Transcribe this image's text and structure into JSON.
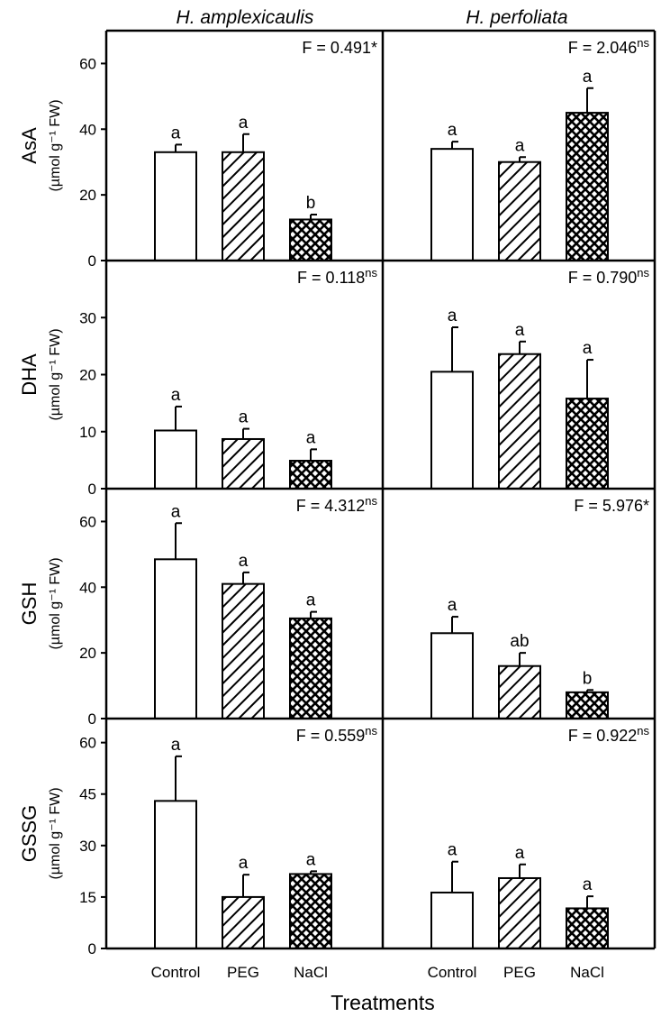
{
  "figure": {
    "columns": [
      "H. amplexicaulis",
      "H. perfoliata"
    ],
    "x_axis_title": "Treatments"
  },
  "chart_data": [
    {
      "type": "bar",
      "species": "H. amplexicaulis",
      "ylabel": "AsA",
      "unit": "(µmol g⁻¹ FW)",
      "categories": [
        "Control",
        "PEG",
        "NaCl"
      ],
      "values": [
        33,
        33,
        12.5
      ],
      "errors": [
        2.3,
        5.5,
        1.5
      ],
      "letters": [
        "a",
        "a",
        "b"
      ],
      "ylim": [
        0,
        70
      ],
      "yticks": [
        0,
        20,
        40,
        60
      ],
      "f_main": "F = 0.491",
      "f_sup": "",
      "f_tail": "*"
    },
    {
      "type": "bar",
      "species": "H. perfoliata",
      "ylabel": "AsA",
      "unit": "(µmol g⁻¹ FW)",
      "categories": [
        "Control",
        "PEG",
        "NaCl"
      ],
      "values": [
        34,
        30,
        45
      ],
      "errors": [
        2.2,
        1.5,
        7.5
      ],
      "letters": [
        "a",
        "a",
        "a"
      ],
      "ylim": [
        0,
        70
      ],
      "yticks": [
        0,
        20,
        40,
        60
      ],
      "f_main": "F = 2.046",
      "f_sup": "ns",
      "f_tail": ""
    },
    {
      "type": "bar",
      "species": "H. amplexicaulis",
      "ylabel": "DHA",
      "unit": "(µmol g⁻¹ FW)",
      "categories": [
        "Control",
        "PEG",
        "NaCl"
      ],
      "values": [
        10.2,
        8.7,
        4.9
      ],
      "errors": [
        4.2,
        1.8,
        2.0
      ],
      "letters": [
        "a",
        "a",
        "a"
      ],
      "ylim": [
        0,
        40
      ],
      "yticks": [
        0,
        10,
        20,
        30
      ],
      "f_main": "F = 0.118",
      "f_sup": "ns",
      "f_tail": ""
    },
    {
      "type": "bar",
      "species": "H. perfoliata",
      "ylabel": "DHA",
      "unit": "(µmol g⁻¹ FW)",
      "categories": [
        "Control",
        "PEG",
        "NaCl"
      ],
      "values": [
        20.5,
        23.6,
        15.8
      ],
      "errors": [
        7.8,
        2.2,
        6.8
      ],
      "letters": [
        "a",
        "a",
        "a"
      ],
      "ylim": [
        0,
        40
      ],
      "yticks": [
        0,
        10,
        20,
        30
      ],
      "f_main": "F = 0.790",
      "f_sup": "ns",
      "f_tail": ""
    },
    {
      "type": "bar",
      "species": "H. amplexicaulis",
      "ylabel": "GSH",
      "unit": "(µmol g⁻¹ FW)",
      "categories": [
        "Control",
        "PEG",
        "NaCl"
      ],
      "values": [
        48.5,
        41,
        30.5
      ],
      "errors": [
        11,
        3.5,
        2.0
      ],
      "letters": [
        "a",
        "a",
        "a"
      ],
      "ylim": [
        0,
        70
      ],
      "yticks": [
        0,
        20,
        40,
        60
      ],
      "f_main": "F = 4.312",
      "f_sup": "ns",
      "f_tail": ""
    },
    {
      "type": "bar",
      "species": "H. perfoliata",
      "ylabel": "GSH",
      "unit": "(µmol g⁻¹ FW)",
      "categories": [
        "Control",
        "PEG",
        "NaCl"
      ],
      "values": [
        26,
        16,
        8
      ],
      "errors": [
        5.0,
        4.0,
        0.7
      ],
      "letters": [
        "a",
        "ab",
        "b"
      ],
      "ylim": [
        0,
        70
      ],
      "yticks": [
        0,
        20,
        40,
        60
      ],
      "f_main": "F = 5.976",
      "f_sup": "",
      "f_tail": "*"
    },
    {
      "type": "bar",
      "species": "H. amplexicaulis",
      "ylabel": "GSSG",
      "unit": "(µmol g⁻¹ FW)",
      "categories": [
        "Control",
        "PEG",
        "NaCl"
      ],
      "values": [
        43,
        15,
        21.7
      ],
      "errors": [
        13,
        6.5,
        0.8
      ],
      "letters": [
        "a",
        "a",
        "a"
      ],
      "ylim": [
        0,
        67
      ],
      "yticks": [
        0,
        15,
        30,
        45,
        60
      ],
      "f_main": "F = 0.559",
      "f_sup": "ns",
      "f_tail": ""
    },
    {
      "type": "bar",
      "species": "H. perfoliata",
      "ylabel": "GSSG",
      "unit": "(µmol g⁻¹ FW)",
      "categories": [
        "Control",
        "PEG",
        "NaCl"
      ],
      "values": [
        16.3,
        20.5,
        11.7
      ],
      "errors": [
        9,
        4.0,
        3.5
      ],
      "letters": [
        "a",
        "a",
        "a"
      ],
      "ylim": [
        0,
        67
      ],
      "yticks": [
        0,
        15,
        30,
        45,
        60
      ],
      "f_main": "F = 0.922",
      "f_sup": "ns",
      "f_tail": ""
    }
  ]
}
